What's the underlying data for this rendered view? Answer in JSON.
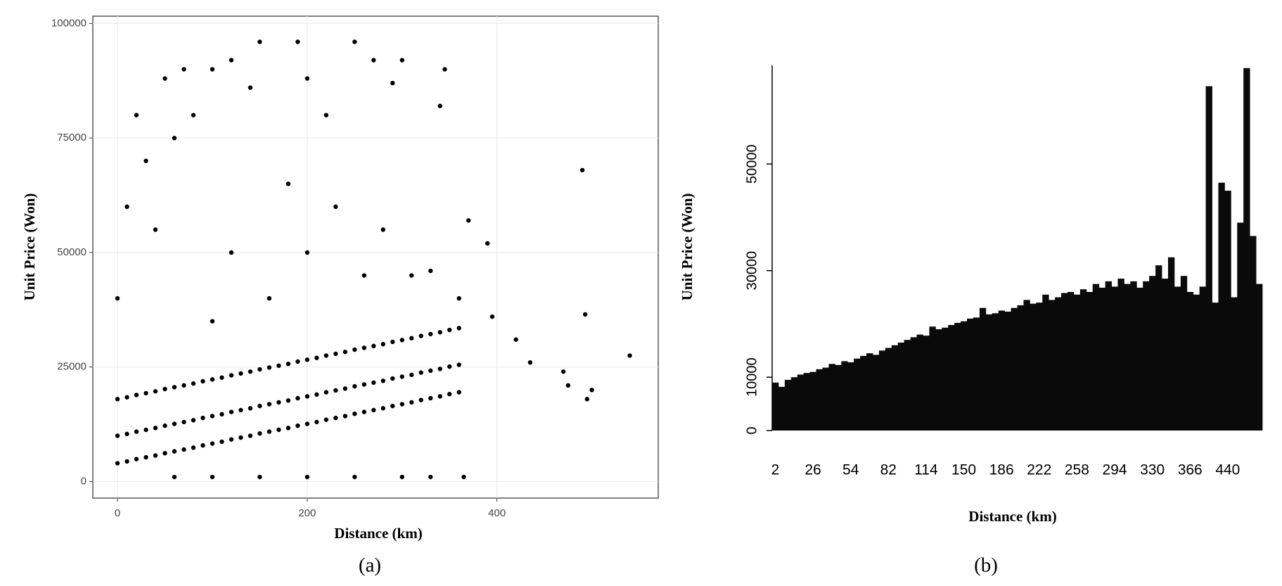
{
  "chart_data": [
    {
      "type": "scatter",
      "caption": "(a)",
      "x_label": "Distance (km)",
      "y_label": "Unit Price (Won)",
      "color": "#000000",
      "grid": true,
      "xlim": [
        -26,
        570
      ],
      "ylim": [
        -3600,
        101600
      ],
      "xticks": [
        0,
        200,
        400
      ],
      "yticks": [
        0,
        25000,
        50000,
        75000,
        100000
      ],
      "x": [
        0,
        0,
        0,
        10,
        10,
        10,
        20,
        20,
        20,
        30,
        30,
        30,
        40,
        40,
        40,
        50,
        50,
        50,
        60,
        60,
        60,
        70,
        70,
        70,
        80,
        80,
        80,
        90,
        90,
        90,
        100,
        100,
        100,
        110,
        110,
        110,
        120,
        120,
        120,
        130,
        130,
        130,
        140,
        140,
        140,
        150,
        150,
        150,
        160,
        160,
        160,
        170,
        170,
        170,
        180,
        180,
        180,
        190,
        190,
        190,
        200,
        200,
        200,
        210,
        210,
        210,
        220,
        220,
        220,
        230,
        230,
        230,
        240,
        240,
        240,
        250,
        250,
        250,
        260,
        260,
        260,
        270,
        270,
        270,
        280,
        280,
        280,
        290,
        290,
        290,
        300,
        300,
        300,
        310,
        310,
        310,
        320,
        320,
        320,
        330,
        330,
        330,
        340,
        340,
        340,
        350,
        350,
        350,
        360,
        360,
        360,
        0,
        10,
        20,
        30,
        50,
        60,
        70,
        80,
        100,
        120,
        140,
        150,
        190,
        200,
        180,
        220,
        250,
        270,
        300,
        290,
        340,
        345,
        230,
        280,
        310,
        330,
        360,
        370,
        390,
        395,
        420,
        435,
        470,
        475,
        490,
        493,
        495,
        500,
        540,
        60,
        100,
        150,
        200,
        250,
        300,
        330,
        365,
        120,
        200,
        160,
        260,
        100,
        40
      ],
      "y": [
        4000,
        10000,
        18000,
        4400,
        10400,
        18400,
        4900,
        10900,
        18900,
        5300,
        11300,
        19300,
        5700,
        11700,
        19700,
        6200,
        12200,
        20200,
        6600,
        12600,
        20600,
        7000,
        13000,
        21000,
        7400,
        13400,
        21400,
        7900,
        13900,
        21900,
        8300,
        14300,
        22300,
        8700,
        14700,
        22700,
        9200,
        15200,
        23200,
        9600,
        15600,
        23600,
        10000,
        16000,
        24000,
        10500,
        16500,
        24500,
        10900,
        16900,
        24900,
        11300,
        17300,
        25300,
        11700,
        17700,
        25700,
        12200,
        18200,
        26200,
        12600,
        18600,
        26600,
        13000,
        19000,
        27000,
        13500,
        19500,
        27500,
        13900,
        19900,
        27900,
        14300,
        20300,
        28300,
        14800,
        20800,
        28800,
        15200,
        21200,
        29200,
        15600,
        21600,
        29600,
        16000,
        22000,
        30000,
        16500,
        22500,
        30500,
        16900,
        22900,
        30900,
        17300,
        23300,
        31300,
        17800,
        23800,
        31800,
        18200,
        24200,
        32200,
        18600,
        24600,
        32600,
        19100,
        25100,
        33100,
        19500,
        25500,
        33500,
        40000,
        60000,
        80000,
        70000,
        88000,
        75000,
        90000,
        80000,
        90000,
        92000,
        86000,
        96000,
        96000,
        88000,
        65000,
        80000,
        96000,
        92000,
        92000,
        87000,
        82000,
        90000,
        60000,
        55000,
        45000,
        46000,
        40000,
        57000,
        52000,
        36000,
        31000,
        26000,
        24000,
        21000,
        68000,
        36500,
        18000,
        20000,
        27500,
        1000,
        1000,
        1000,
        1000,
        1000,
        1000,
        1000,
        1000,
        50000,
        50000,
        40000,
        45000,
        35000,
        55000
      ]
    },
    {
      "type": "bar",
      "caption": "(b)",
      "x_label": "Distance (km)",
      "y_label": "Unit Price (Won)",
      "color": "#0a0a0a",
      "ylim": [
        0,
        68500
      ],
      "yticks": [
        0,
        10000,
        30000,
        50000
      ],
      "categories": [
        "2",
        null,
        null,
        null,
        null,
        null,
        "26",
        null,
        null,
        null,
        null,
        null,
        "54",
        null,
        null,
        null,
        null,
        null,
        "82",
        null,
        null,
        null,
        null,
        null,
        "114",
        null,
        null,
        null,
        null,
        null,
        "150",
        null,
        null,
        null,
        null,
        null,
        "186",
        null,
        null,
        null,
        null,
        null,
        "222",
        null,
        null,
        null,
        null,
        null,
        "258",
        null,
        null,
        null,
        null,
        null,
        "294",
        null,
        null,
        null,
        null,
        null,
        "330",
        null,
        null,
        null,
        null,
        null,
        "366",
        null,
        null,
        null,
        null,
        null,
        "440",
        null,
        null,
        null,
        null,
        null
      ],
      "values": [
        9000,
        8200,
        9500,
        10000,
        10500,
        10800,
        11000,
        11500,
        11800,
        12500,
        12300,
        13000,
        12800,
        13500,
        14000,
        14500,
        14200,
        15000,
        15500,
        16000,
        16500,
        17000,
        17500,
        18000,
        17800,
        19500,
        19000,
        19300,
        19800,
        20200,
        20500,
        21000,
        21200,
        23000,
        21800,
        22000,
        22500,
        22300,
        23000,
        23500,
        24500,
        23800,
        24000,
        25500,
        24500,
        25000,
        25800,
        26000,
        25500,
        26500,
        26000,
        27500,
        26800,
        28000,
        27000,
        28500,
        27500,
        28000,
        26800,
        28000,
        29000,
        31000,
        28500,
        32500,
        27000,
        29000,
        26000,
        25500,
        27000,
        64600,
        24000,
        46500,
        45000,
        25000,
        39000,
        68000,
        36500,
        27500
      ]
    }
  ]
}
